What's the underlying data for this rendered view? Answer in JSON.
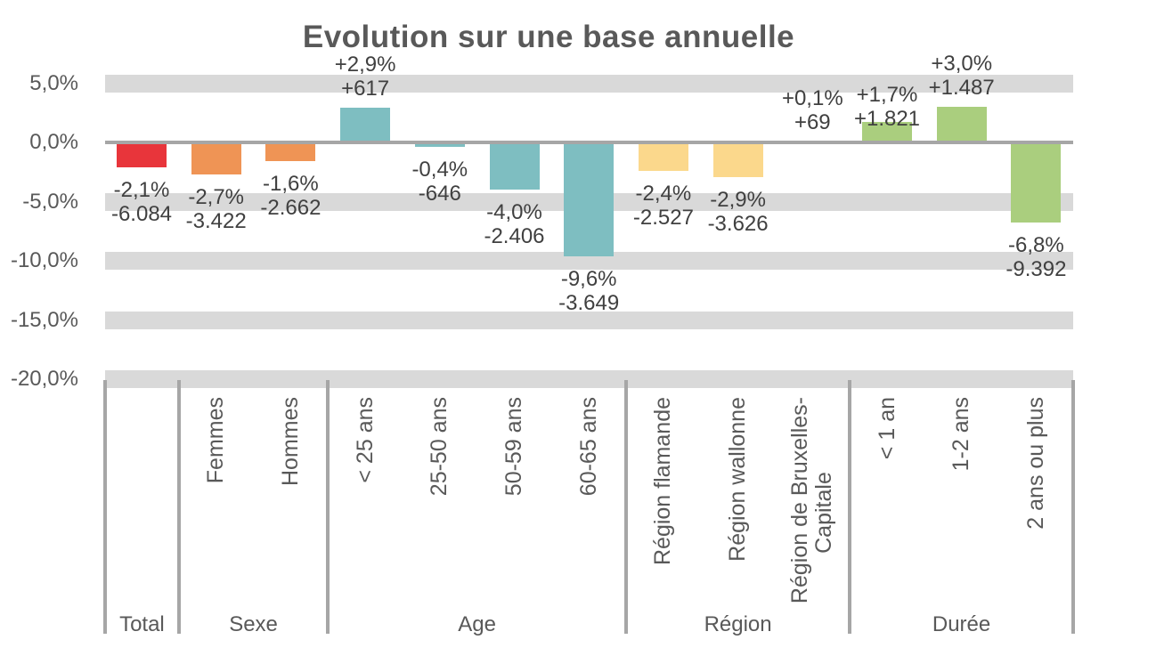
{
  "title": "Evolution sur une base annuelle",
  "colors": {
    "total": "#E8353B",
    "sexe": "#EF9455",
    "age": "#7EBEC1",
    "region": "#FBD88C",
    "duree": "#AACE7E",
    "gridline_band": "#D9D9D9",
    "axis_line": "#A6A6A6",
    "axis_text": "#595959",
    "value_text": "#404040"
  },
  "chart_data": {
    "type": "bar",
    "title": "Evolution sur une base annuelle",
    "value_unit": "%",
    "y_axis": {
      "tick_labels": [
        "5,0%",
        "0,0%",
        "-5,0%",
        "-10,0%",
        "-15,0%",
        "-20,0%"
      ],
      "tick_values": [
        5,
        0,
        -5,
        -10,
        -15,
        -20
      ],
      "ylim": [
        -20,
        5
      ],
      "gridline_style": "band"
    },
    "groups": [
      {
        "id": "total",
        "label": "Total",
        "color": "#E8353B",
        "categories": [
          {
            "id": "total",
            "label": "",
            "label_lines": [],
            "value_pct": -2.1,
            "pct_label": "-2,1%",
            "count_label": "-6.084"
          }
        ]
      },
      {
        "id": "sexe",
        "label": "Sexe",
        "color": "#EF9455",
        "categories": [
          {
            "id": "femmes",
            "label": "Femmes",
            "label_lines": [
              "Femmes"
            ],
            "value_pct": -2.7,
            "pct_label": "-2,7%",
            "count_label": "-3.422"
          },
          {
            "id": "hommes",
            "label": "Hommes",
            "label_lines": [
              "Hommes"
            ],
            "value_pct": -1.6,
            "pct_label": "-1,6%",
            "count_label": "-2.662"
          }
        ]
      },
      {
        "id": "age",
        "label": "Age",
        "color": "#7EBEC1",
        "categories": [
          {
            "id": "moins-25-ans",
            "label": "< 25 ans",
            "label_lines": [
              "< 25 ans"
            ],
            "value_pct": 2.9,
            "pct_label": "+2,9%",
            "count_label": "+617"
          },
          {
            "id": "25-50-ans",
            "label": "25-50 ans",
            "label_lines": [
              "25-50 ans"
            ],
            "value_pct": -0.4,
            "pct_label": "-0,4%",
            "count_label": "-646"
          },
          {
            "id": "50-59-ans",
            "label": "50-59 ans",
            "label_lines": [
              "50-59 ans"
            ],
            "value_pct": -4.0,
            "pct_label": "-4,0%",
            "count_label": "-2.406"
          },
          {
            "id": "60-65-ans",
            "label": "60-65 ans",
            "label_lines": [
              "60-65 ans"
            ],
            "value_pct": -9.6,
            "pct_label": "-9,6%",
            "count_label": "-3.649"
          }
        ]
      },
      {
        "id": "region",
        "label": "Région",
        "color": "#FBD88C",
        "categories": [
          {
            "id": "region-flamande",
            "label": "Région flamande",
            "label_lines": [
              "Région flamande"
            ],
            "value_pct": -2.4,
            "pct_label": "-2,4%",
            "count_label": "-2.527"
          },
          {
            "id": "region-wallonne",
            "label": "Région wallonne",
            "label_lines": [
              "Région wallonne"
            ],
            "value_pct": -2.9,
            "pct_label": "-2,9%",
            "count_label": "-3.626"
          },
          {
            "id": "region-bruxelles-capitale",
            "label": "Région de Bruxelles-Capitale",
            "label_lines": [
              "Région de Bruxelles-",
              "Capitale"
            ],
            "value_pct": 0.1,
            "pct_label": "+0,1%",
            "count_label": "+69"
          }
        ]
      },
      {
        "id": "duree",
        "label": "Durée",
        "color": "#AACE7E",
        "categories": [
          {
            "id": "moins-1-an",
            "label": "< 1 an",
            "label_lines": [
              "< 1 an"
            ],
            "value_pct": 1.7,
            "pct_label": "+1,7%",
            "count_label": "+1.821"
          },
          {
            "id": "1-2-ans",
            "label": "1-2 ans",
            "label_lines": [
              "1-2 ans"
            ],
            "value_pct": 3.0,
            "pct_label": "+3,0%",
            "count_label": "+1.487"
          },
          {
            "id": "2-ans-ou-plus",
            "label": "2 ans ou plus",
            "label_lines": [
              "2 ans ou plus"
            ],
            "value_pct": -6.8,
            "pct_label": "-6,8%",
            "count_label": "-9.392"
          }
        ]
      }
    ]
  }
}
